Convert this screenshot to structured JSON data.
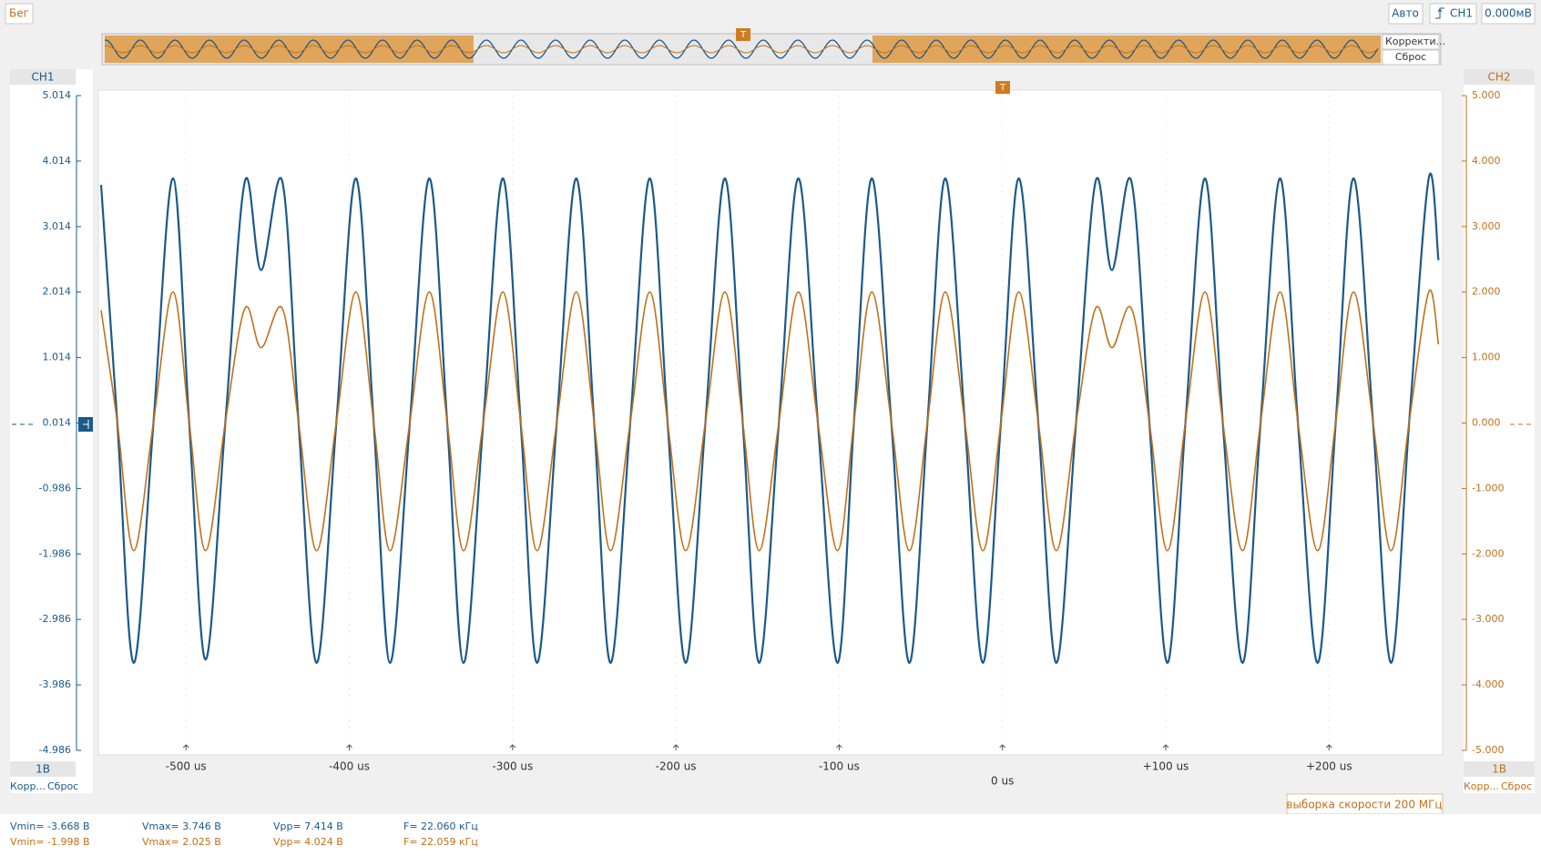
{
  "ui": {
    "run_state": "Бег",
    "trigger_mode": "Авто",
    "trigger_source": "CH1",
    "trigger_level": "0.000мВ",
    "overview_buttons": [
      "Корректи...",
      "Сброс"
    ],
    "trigger_marker": "T",
    "ch1_scale": "1В",
    "ch1_buttons": [
      "Корр...",
      "Сброс"
    ],
    "ch2_scale": "1В",
    "ch2_buttons": [
      "Корр...",
      "Сброс"
    ],
    "sample_rate": "выборка скорости 200 МГц",
    "measurements": [
      [
        "Vmin= -3.668 В",
        "Vmax= 3.746 В",
        "Vpp= 7.414 В",
        "F= 22.060 кГц"
      ],
      [
        "Vmin= -1.998 В",
        "Vmax= 2.025 В",
        "Vpp= 4.024 В",
        "F= 22.059 кГц"
      ]
    ]
  },
  "chart_data": {
    "type": "line",
    "x": [
      -552,
      -542,
      -532,
      -520,
      -508,
      -498,
      -488,
      -476,
      -464,
      -454,
      -441,
      -431,
      -420,
      -408,
      -396,
      -385,
      -375,
      -363,
      -351,
      -340,
      -330,
      -318,
      -306,
      -295,
      -285,
      -273,
      -261,
      -250,
      -240,
      -228,
      -216,
      -205,
      -194,
      -182,
      -170,
      -159,
      -149,
      -137,
      -125,
      -113,
      -101,
      -91,
      -80,
      -68,
      -57,
      -46,
      -35,
      -23,
      -12,
      -1,
      10,
      22,
      33,
      45,
      57,
      67,
      79,
      90,
      101,
      112,
      124,
      135,
      147,
      158,
      170,
      181,
      193,
      204,
      215,
      227,
      238,
      249,
      261,
      267
    ],
    "xlim": [
      -552,
      269
    ],
    "xticks": [
      {
        "value": -500,
        "label": "-500 us"
      },
      {
        "value": -400,
        "label": "-400 us"
      },
      {
        "value": -300,
        "label": "-300 us"
      },
      {
        "value": -200,
        "label": "-200 us"
      },
      {
        "value": -100,
        "label": "-100 us"
      },
      {
        "value": 0,
        "label": "0 us"
      },
      {
        "value": 100,
        "label": "+100 us"
      },
      {
        "value": 200,
        "label": "+200 us"
      }
    ],
    "ylim": [
      -4.986,
      5.014
    ],
    "yticks": [
      5.014,
      4.014,
      3.014,
      2.014,
      1.014,
      0.014,
      -0.986,
      -1.986,
      -2.986,
      -3.986,
      -4.986
    ],
    "y2lim": [
      -5,
      5
    ],
    "y2ticks": [
      {
        "value": 5,
        "label": "5.000"
      },
      {
        "value": 4,
        "label": "4.000"
      },
      {
        "value": 3,
        "label": "3.000"
      },
      {
        "value": 2,
        "label": "2.000"
      },
      {
        "value": 1,
        "label": "1.000"
      },
      {
        "value": 0,
        "label": "0.000"
      },
      {
        "value": -1,
        "label": "-1.000"
      },
      {
        "value": -2,
        "label": "-2.000"
      },
      {
        "value": -3,
        "label": "-3.000"
      },
      {
        "value": -4,
        "label": "-4.000"
      },
      {
        "value": -5,
        "label": "-5.000"
      }
    ],
    "grid": true,
    "series": [
      {
        "name": "CH1",
        "color": "#1b5a8a",
        "values": [
          3.65,
          0,
          -3.65,
          0,
          3.75,
          0,
          -3.6,
          0,
          3.7,
          2.35,
          3.7,
          0,
          -3.65,
          0,
          3.75,
          0,
          -3.65,
          0,
          3.75,
          0,
          -3.65,
          0,
          3.75,
          0,
          -3.65,
          0,
          3.75,
          0,
          -3.65,
          0,
          3.75,
          0,
          -3.65,
          0,
          3.75,
          0,
          -3.65,
          0,
          3.75,
          0,
          -3.65,
          0,
          3.75,
          0,
          -3.65,
          0,
          3.75,
          0,
          -3.65,
          0,
          3.75,
          0,
          -3.65,
          0,
          3.7,
          2.35,
          3.7,
          0,
          -3.65,
          0,
          3.75,
          0,
          -3.65,
          0,
          3.75,
          0,
          -3.65,
          0,
          3.75,
          0,
          -3.65,
          0,
          3.75,
          2.5
        ]
      },
      {
        "name": "CH2",
        "color": "#c0701a",
        "axis": "y2",
        "values": [
          1.72,
          0,
          -1.95,
          0,
          2.0,
          0,
          -1.95,
          0,
          1.75,
          1.15,
          1.75,
          0,
          -1.95,
          0,
          2.0,
          0,
          -1.95,
          0,
          2.0,
          0,
          -1.95,
          0,
          2.0,
          0,
          -1.95,
          0,
          2.0,
          0,
          -1.95,
          0,
          2.0,
          0,
          -1.95,
          0,
          2.0,
          0,
          -1.95,
          0,
          2.0,
          0,
          -1.95,
          0,
          2.0,
          0,
          -1.95,
          0,
          2.0,
          0,
          -1.95,
          0,
          2.0,
          0,
          -1.95,
          0,
          1.75,
          1.15,
          1.75,
          0,
          -1.95,
          0,
          2.0,
          0,
          -1.95,
          0,
          2.0,
          0,
          -1.95,
          0,
          2.0,
          0,
          -1.95,
          0,
          2.0,
          1.2
        ]
      }
    ]
  }
}
